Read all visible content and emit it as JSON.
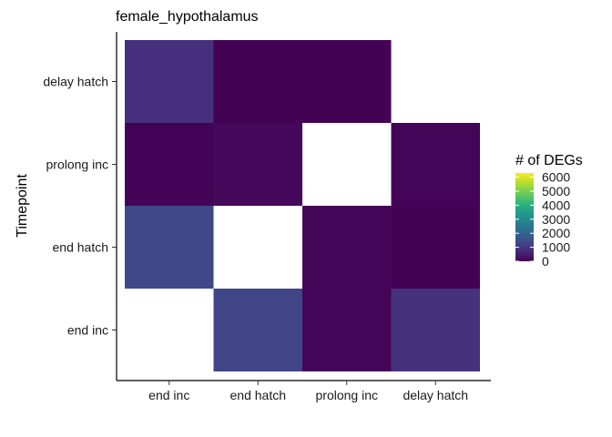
{
  "chart_data": {
    "type": "heatmap",
    "title": "female_hypothalamus",
    "xlabel": "",
    "ylabel": "Timepoint",
    "x_categories": [
      "end inc",
      "end hatch",
      "prolong inc",
      "delay hatch"
    ],
    "y_categories": [
      "end inc",
      "end hatch",
      "prolong inc",
      "delay hatch"
    ],
    "cells": [
      {
        "x": "end hatch",
        "y": "end inc",
        "value": 1300
      },
      {
        "x": "prolong inc",
        "y": "end inc",
        "value": 80
      },
      {
        "x": "delay hatch",
        "y": "end inc",
        "value": 900
      },
      {
        "x": "end inc",
        "y": "end hatch",
        "value": 1350
      },
      {
        "x": "prolong inc",
        "y": "end hatch",
        "value": 80
      },
      {
        "x": "delay hatch",
        "y": "end hatch",
        "value": 10
      },
      {
        "x": "end inc",
        "y": "prolong inc",
        "value": 30
      },
      {
        "x": "end hatch",
        "y": "prolong inc",
        "value": 120
      },
      {
        "x": "delay hatch",
        "y": "prolong inc",
        "value": 50
      },
      {
        "x": "end inc",
        "y": "delay hatch",
        "value": 850
      },
      {
        "x": "end hatch",
        "y": "delay hatch",
        "value": 20
      },
      {
        "x": "prolong inc",
        "y": "delay hatch",
        "value": 20
      }
    ],
    "color_scale": {
      "name": "viridis",
      "min": 0,
      "max": 6300,
      "stops": [
        "#440154",
        "#482878",
        "#3E4A89",
        "#31688E",
        "#26828E",
        "#1F9E89",
        "#35B779",
        "#6DCD59",
        "#B4DE2C",
        "#FDE725"
      ]
    },
    "legend": {
      "title": "# of DEGs",
      "ticks": [
        6000,
        5000,
        4000,
        3000,
        2000,
        1000,
        0
      ],
      "position": "right"
    },
    "grid": false
  }
}
